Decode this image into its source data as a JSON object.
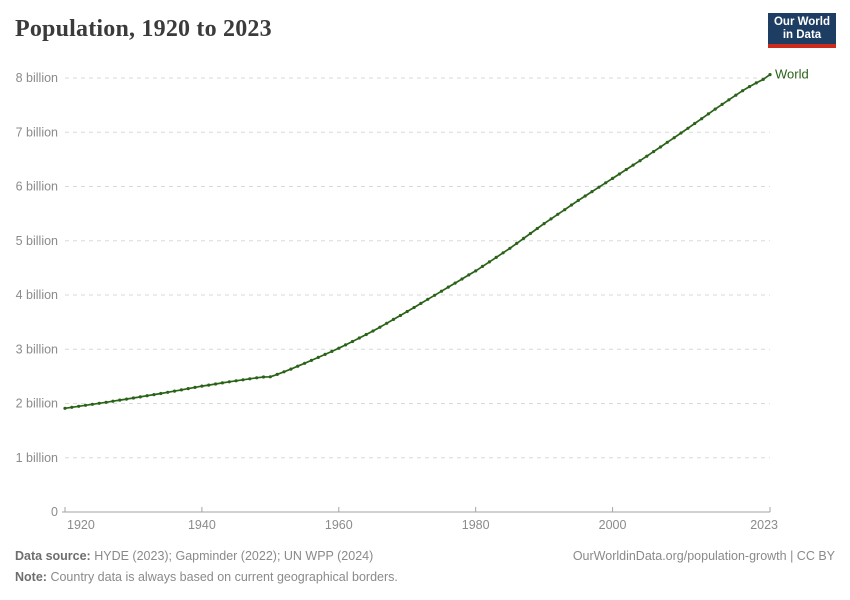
{
  "header": {
    "title": "Population, 1920 to 2023",
    "logo": {
      "line1": "Our World",
      "line2": "in Data"
    }
  },
  "chart_data": {
    "type": "line",
    "title": "Population, 1920 to 2023",
    "xlabel": "",
    "ylabel": "",
    "unit": "billion people",
    "grid": "horizontal-dashed",
    "legend_position": "end-of-line",
    "xlim": [
      1920,
      2023
    ],
    "ylim": [
      0,
      8.3
    ],
    "x_ticks": [
      1920,
      1940,
      1960,
      1980,
      2000,
      2023
    ],
    "y_ticks": [
      {
        "value": 0,
        "label": "0"
      },
      {
        "value": 1,
        "label": "1 billion"
      },
      {
        "value": 2,
        "label": "2 billion"
      },
      {
        "value": 3,
        "label": "3 billion"
      },
      {
        "value": 4,
        "label": "4 billion"
      },
      {
        "value": 5,
        "label": "5 billion"
      },
      {
        "value": 6,
        "label": "6 billion"
      },
      {
        "value": 7,
        "label": "7 billion"
      },
      {
        "value": 8,
        "label": "8 billion"
      }
    ],
    "series": [
      {
        "name": "World",
        "color": "#2a6318",
        "years": [
          1920,
          1921,
          1922,
          1923,
          1924,
          1925,
          1926,
          1927,
          1928,
          1929,
          1930,
          1931,
          1932,
          1933,
          1934,
          1935,
          1936,
          1937,
          1938,
          1939,
          1940,
          1941,
          1942,
          1943,
          1944,
          1945,
          1946,
          1947,
          1948,
          1949,
          1950,
          1951,
          1952,
          1953,
          1954,
          1955,
          1956,
          1957,
          1958,
          1959,
          1960,
          1961,
          1962,
          1963,
          1964,
          1965,
          1966,
          1967,
          1968,
          1969,
          1970,
          1971,
          1972,
          1973,
          1974,
          1975,
          1976,
          1977,
          1978,
          1979,
          1980,
          1981,
          1982,
          1983,
          1984,
          1985,
          1986,
          1987,
          1988,
          1989,
          1990,
          1991,
          1992,
          1993,
          1994,
          1995,
          1996,
          1997,
          1998,
          1999,
          2000,
          2001,
          2002,
          2003,
          2004,
          2005,
          2006,
          2007,
          2008,
          2009,
          2010,
          2011,
          2012,
          2013,
          2014,
          2015,
          2016,
          2017,
          2018,
          2019,
          2020,
          2021,
          2022,
          2023
        ],
        "values_billion": [
          1.912,
          1.93,
          1.948,
          1.966,
          1.985,
          2.004,
          2.023,
          2.042,
          2.062,
          2.081,
          2.102,
          2.122,
          2.143,
          2.164,
          2.185,
          2.207,
          2.229,
          2.251,
          2.274,
          2.297,
          2.32,
          2.34,
          2.36,
          2.38,
          2.4,
          2.419,
          2.437,
          2.456,
          2.474,
          2.489,
          2.493,
          2.536,
          2.584,
          2.635,
          2.687,
          2.741,
          2.795,
          2.85,
          2.905,
          2.96,
          3.019,
          3.08,
          3.143,
          3.207,
          3.272,
          3.337,
          3.407,
          3.478,
          3.55,
          3.622,
          3.695,
          3.77,
          3.845,
          3.92,
          3.995,
          4.07,
          4.145,
          4.22,
          4.295,
          4.37,
          4.444,
          4.527,
          4.61,
          4.694,
          4.777,
          4.861,
          4.952,
          5.043,
          5.134,
          5.225,
          5.316,
          5.402,
          5.488,
          5.573,
          5.659,
          5.744,
          5.825,
          5.906,
          5.987,
          6.068,
          6.149,
          6.231,
          6.313,
          6.395,
          6.476,
          6.558,
          6.644,
          6.729,
          6.815,
          6.9,
          6.986,
          7.073,
          7.161,
          7.25,
          7.339,
          7.426,
          7.513,
          7.599,
          7.683,
          7.765,
          7.841,
          7.909,
          7.975,
          8.062
        ]
      }
    ]
  },
  "footer": {
    "source_label": "Data source:",
    "source_text": "HYDE (2023); Gapminder (2022); UN WPP (2024)",
    "note_label": "Note:",
    "note_text": "Country data is always based on current geographical borders.",
    "link_text": "OurWorldinData.org/population-growth | CC BY"
  },
  "colors": {
    "logo_background": "#1d3d63",
    "logo_accent": "#cc2c1d",
    "grid": "#dadada",
    "axis": "#a3a3a3",
    "tick_text": "#8b8b8b",
    "title_text": "#3b3b3b",
    "world_line": "#2a6318"
  }
}
